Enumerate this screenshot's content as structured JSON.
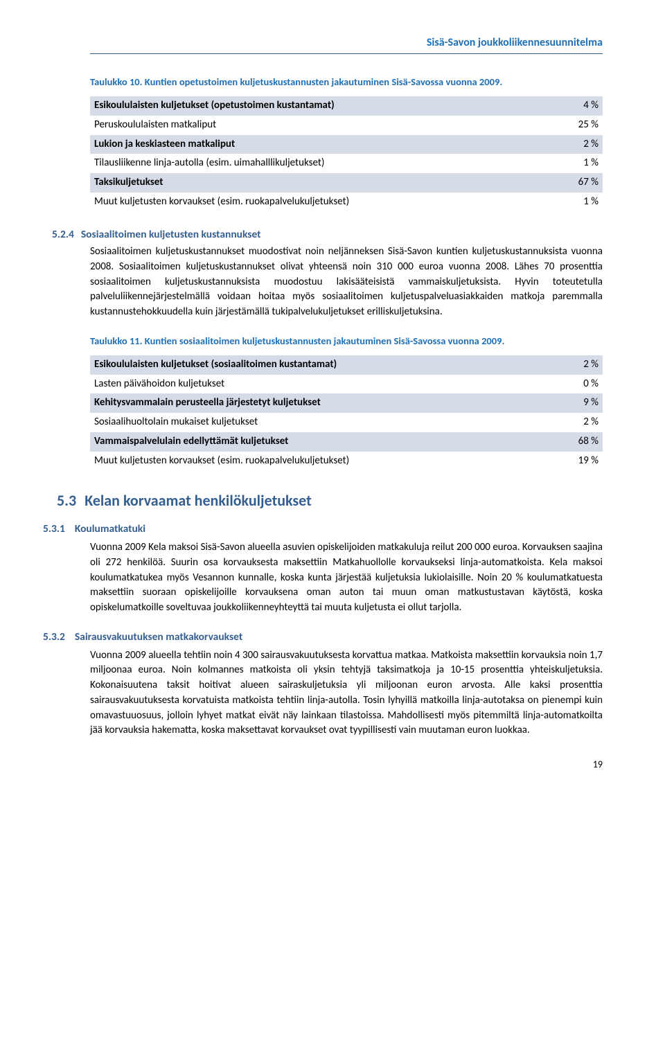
{
  "header": {
    "title": "Sisä-Savon joukkoliikennesuunnitelma"
  },
  "table10": {
    "caption": "Taulukko 10. Kuntien opetustoimen kuljetuskustannusten jakautuminen Sisä-Savossa vuonna 2009.",
    "rows": [
      {
        "label": "Esikoululaisten kuljetukset (opetustoimen kustantamat)",
        "value": "4 %",
        "shaded": true
      },
      {
        "label": "Peruskoululaisten matkaliput",
        "value": "25 %",
        "shaded": false
      },
      {
        "label": "Lukion ja keskiasteen matkaliput",
        "value": "2 %",
        "shaded": true
      },
      {
        "label": "Tilausliikenne linja-autolla (esim. uimahalllikuljetukset)",
        "value": "1 %",
        "shaded": false
      },
      {
        "label": "Taksikuljetukset",
        "value": "67 %",
        "shaded": true
      },
      {
        "label": "Muut kuljetusten korvaukset (esim. ruokapalvelukuljetukset)",
        "value": "1 %",
        "shaded": false
      }
    ]
  },
  "sec524": {
    "num": "5.2.4",
    "title": "Sosiaalitoimen kuljetusten kustannukset",
    "body": "Sosiaalitoimen kuljetuskustannukset muodostivat noin neljänneksen Sisä-Savon kuntien kuljetuskustannuksista vuonna 2008. Sosiaalitoimen kuljetuskustannukset olivat yhteensä noin 310 000 euroa vuonna 2008. Lähes 70 prosenttia sosiaalitoimen kuljetuskustannuksista muodostuu lakisääteisistä vammaiskuljetuksista. Hyvin toteutetulla palveluliikennejärjestelmällä voidaan hoitaa myös sosiaalitoimen kuljetuspalveluasiakkaiden matkoja paremmalla kustannustehokkuudella kuin järjestämällä tukipalvelukuljetukset erilliskuljetuksina."
  },
  "table11": {
    "caption": "Taulukko 11. Kuntien sosiaalitoimen kuljetuskustannusten jakautuminen Sisä-Savossa vuonna 2009.",
    "rows": [
      {
        "label": "Esikoululaisten kuljetukset (sosiaalitoimen kustantamat)",
        "value": "2 %",
        "shaded": true
      },
      {
        "label": "Lasten päivähoidon kuljetukset",
        "value": "0 %",
        "shaded": false
      },
      {
        "label": "Kehitysvammalain perusteella järjestetyt kuljetukset",
        "value": "9 %",
        "shaded": true
      },
      {
        "label": "Sosiaalihuoltolain mukaiset kuljetukset",
        "value": "2 %",
        "shaded": false
      },
      {
        "label": "Vammaispalvelulain edellyttämät kuljetukset",
        "value": "68 %",
        "shaded": true
      },
      {
        "label": "Muut kuljetusten korvaukset (esim. ruokapalvelukuljetukset)",
        "value": "19 %",
        "shaded": false
      }
    ]
  },
  "sec53": {
    "num": "5.3",
    "title": "Kelan korvaamat henkilökuljetukset"
  },
  "sec531": {
    "num": "5.3.1",
    "title": "Koulumatkatuki",
    "body": "Vuonna 2009 Kela maksoi Sisä-Savon alueella asuvien opiskelijoiden matkakuluja reilut 200 000 euroa. Korvauksen saajina oli 272 henkilöä. Suurin osa korvauksesta maksettiin Matkahuollolle korvaukseksi linja-automatkoista. Kela maksoi koulumatkatukea myös Vesannon kunnalle, koska kunta järjestää kuljetuksia lukiolaisille. Noin 20 % koulumatkatuesta maksettiin suoraan opiskelijoille korvauksena oman auton tai muun oman matkustustavan käytöstä, koska opiskelumatkoille soveltuvaa joukkoliikenneyhteyttä tai muuta kuljetusta ei ollut tarjolla."
  },
  "sec532": {
    "num": "5.3.2",
    "title": "Sairausvakuutuksen matkakorvaukset",
    "body": "Vuonna 2009 alueella tehtiin noin 4 300 sairausvakuutuksesta korvattua matkaa. Matkoista maksettiin korvauksia noin 1,7 miljoonaa euroa. Noin kolmannes matkoista oli yksin tehtyjä taksimatkoja ja 10-15 prosenttia yhteiskuljetuksia. Kokonaisuutena taksit hoitivat alueen sairaskuljetuksia yli miljoonan euron arvosta. Alle kaksi prosenttia sairausvakuutuksesta korvatuista matkoista tehtiin linja-autolla. Tosin lyhyillä matkoilla linja-autotaksa on pienempi kuin omavastuuosuus, jolloin lyhyet matkat eivät näy lainkaan tilastoissa. Mahdollisesti myös pitemmiltä linja-automatkoilta jää korvauksia hakematta, koska maksettavat korvaukset ovat tyypillisesti vain muutaman euron luokkaa."
  },
  "page": {
    "number": "19"
  },
  "colors": {
    "heading_blue": "#1f6fb5",
    "section_blue": "#345e90",
    "rule_blue": "#355f91",
    "row_shade": "#d5dce8",
    "background": "#ffffff",
    "text": "#000000"
  }
}
